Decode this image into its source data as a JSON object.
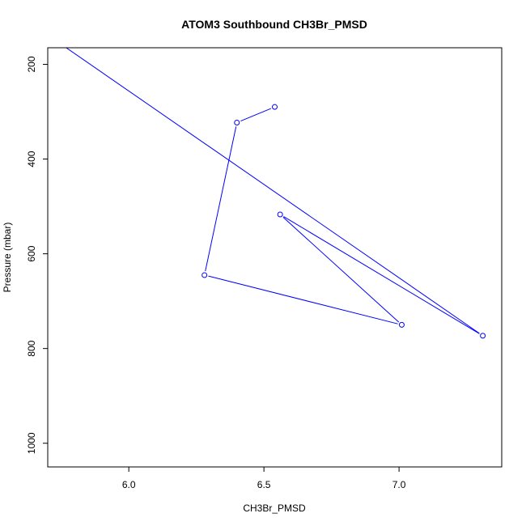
{
  "chart_data": {
    "type": "line",
    "title": "ATOM3 Southbound CH3Br_PMSD",
    "xlabel": "CH3Br_PMSD",
    "ylabel": "Pressure (mbar)",
    "xlim": [
      5.7,
      7.38
    ],
    "ylim": [
      1050,
      165
    ],
    "y_axis_inverted": true,
    "grid": false,
    "xticks": [
      "6.0",
      "6.5",
      "7.0"
    ],
    "xtick_values": [
      6.0,
      6.5,
      7.0
    ],
    "yticks": [
      "200",
      "400",
      "600",
      "800",
      "1000"
    ],
    "ytick_values": [
      200,
      400,
      600,
      800,
      1000
    ],
    "series": [
      {
        "color": "#0000ff",
        "marker": "open-circle",
        "points": [
          {
            "x": 5.35,
            "y": 0,
            "marker": false
          },
          {
            "x": 7.31,
            "y": 773
          },
          {
            "x": 6.56,
            "y": 517
          },
          {
            "x": 7.01,
            "y": 750
          },
          {
            "x": 6.28,
            "y": 645
          },
          {
            "x": 6.4,
            "y": 323
          },
          {
            "x": 6.54,
            "y": 290
          }
        ]
      }
    ]
  }
}
